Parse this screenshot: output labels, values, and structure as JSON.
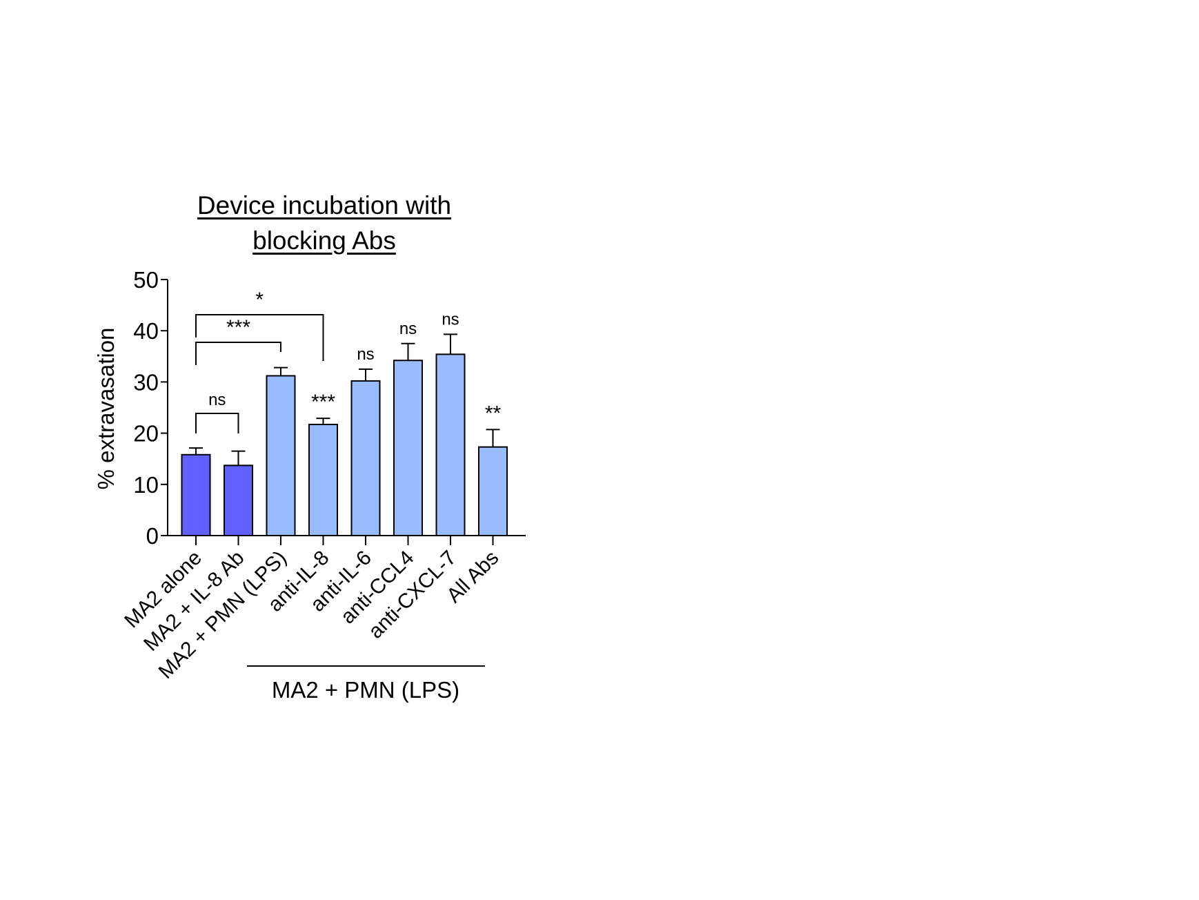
{
  "chart_data": {
    "type": "bar",
    "title_line1": "Device incubation with",
    "title_line2": "blocking Abs",
    "ylabel": "% extravasation",
    "ylim": [
      0,
      50
    ],
    "yticks": [
      "0",
      "10",
      "20",
      "30",
      "40",
      "50"
    ],
    "categories": [
      "MA2 alone",
      "MA2 + IL-8 Ab",
      "MA2 + PMN (LPS)",
      "anti-IL-8",
      "anti-IL-6",
      "anti-CCL4",
      "anti-CXCL-7",
      "All Abs"
    ],
    "values": [
      15.8,
      13.7,
      31.2,
      21.7,
      30.2,
      34.2,
      35.4,
      17.3
    ],
    "errors": [
      1.3,
      2.8,
      1.6,
      1.2,
      2.3,
      3.3,
      3.9,
      3.4
    ],
    "bar_colors": [
      "#6161ff",
      "#6161ff",
      "#99bbff",
      "#99bbff",
      "#99bbff",
      "#99bbff",
      "#99bbff",
      "#99bbff"
    ],
    "group_label": "MA2 + PMN (LPS)",
    "annotations": [
      {
        "text": "ns",
        "bar": 4
      },
      {
        "text": "ns",
        "bar": 5
      },
      {
        "text": "ns",
        "bar": 6
      },
      {
        "text": "***",
        "bar": 3
      },
      {
        "text": "**",
        "bar": 7
      }
    ],
    "brackets": [
      {
        "from": 0,
        "to": 1,
        "text": "ns"
      },
      {
        "from": 0,
        "to": 2,
        "text": "***"
      },
      {
        "from": 0,
        "to": 3,
        "text": "*"
      }
    ]
  }
}
